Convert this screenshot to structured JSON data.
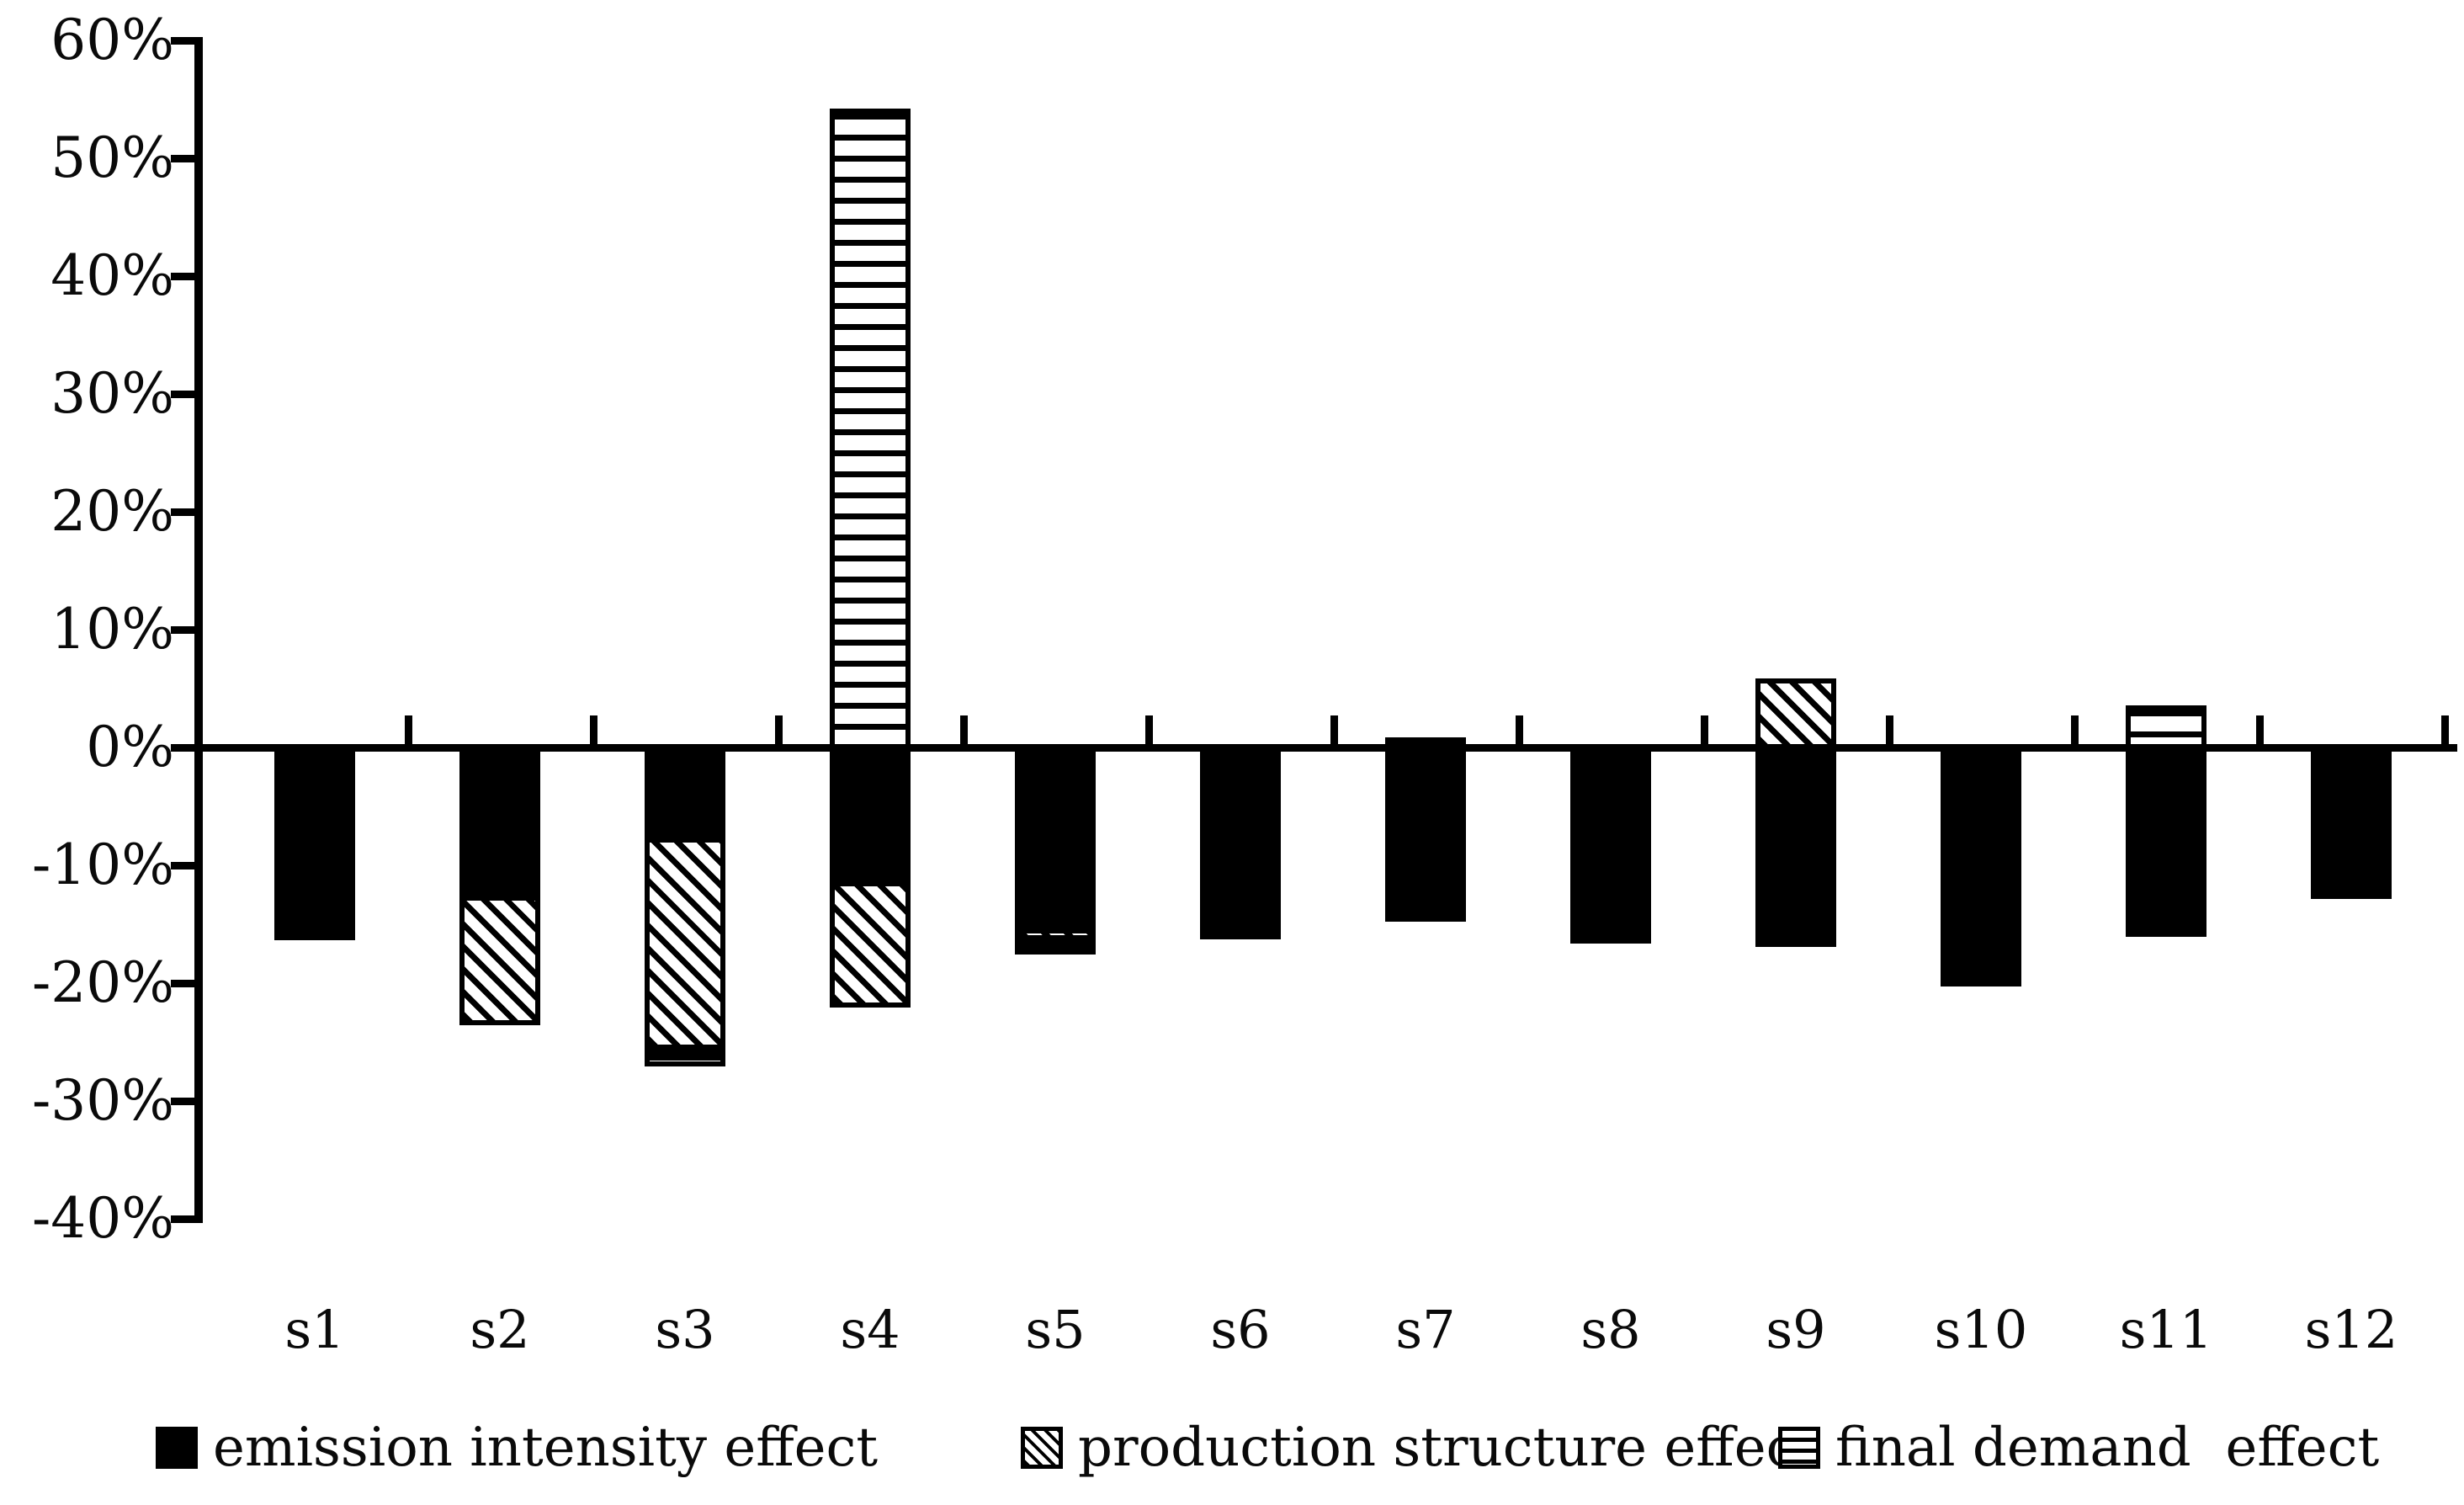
{
  "y_axis": {
    "tick_labels": [
      "60%",
      "50%",
      "40%",
      "30%",
      "20%",
      "10%",
      "0%",
      "-10%",
      "-20%",
      "-30%",
      "-40%"
    ],
    "unit": "%"
  },
  "x_axis": {
    "categories": [
      "s1",
      "s2",
      "s3",
      "s4",
      "s5",
      "s6",
      "s7",
      "s8",
      "s9",
      "s10",
      "s11",
      "s12"
    ]
  },
  "legend": {
    "items": [
      {
        "label": "emission intensity effect",
        "pattern": "solid-black"
      },
      {
        "label": "production structure effect",
        "pattern": "diagonal-hatch"
      },
      {
        "label": "final demand  effect",
        "pattern": "horizontal-lines"
      }
    ]
  },
  "colors": {
    "foreground": "#000000",
    "background": "#ffffff"
  },
  "chart_data": {
    "type": "bar",
    "stacked": true,
    "categories": [
      "s1",
      "s2",
      "s3",
      "s4",
      "s5",
      "s6",
      "s7",
      "s8",
      "s9",
      "s10",
      "s11",
      "s12"
    ],
    "series": [
      {
        "name": "emission intensity effect",
        "pattern": "solid-black",
        "values": [
          -16.5,
          -12.7,
          -7.8,
          -11.5,
          -15.5,
          -16.4,
          -14.9,
          -16.8,
          -17.1,
          -20.4,
          -16.2,
          -13.0
        ]
      },
      {
        "name": "production structure effect",
        "pattern": "diagonal-hatch",
        "values": [
          0,
          -11.0,
          -18.0,
          -10.7,
          -1.0,
          0,
          0,
          0,
          6.1,
          0,
          0,
          0
        ]
      },
      {
        "name": "final demand effect",
        "pattern": "horizontal-lines",
        "values": [
          0,
          0,
          -1.4,
          54.4,
          -1.2,
          0,
          1.1,
          0,
          0,
          0,
          3.8,
          0
        ]
      }
    ],
    "title": "",
    "xlabel": "",
    "ylabel": "",
    "ylim": [
      -40,
      60
    ],
    "y_tick_step": 10,
    "grid": false,
    "legend_position": "bottom"
  }
}
